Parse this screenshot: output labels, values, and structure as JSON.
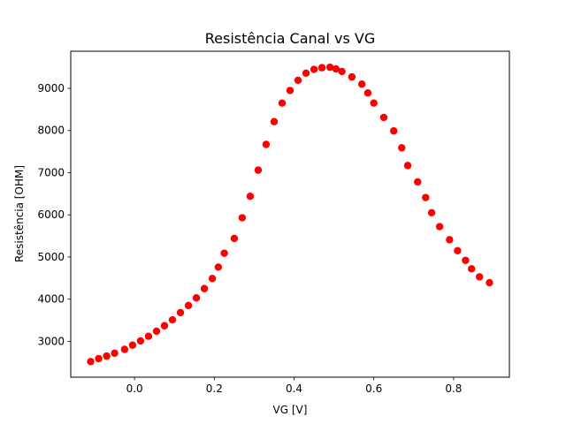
{
  "chart_data": {
    "type": "scatter",
    "title": "Resistência Canal vs VG",
    "xlabel": "VG [V]",
    "ylabel": "Resistência [OHM]",
    "xlim": [
      -0.16,
      0.94
    ],
    "ylim": [
      2150,
      9880
    ],
    "xticks": [
      0.0,
      0.2,
      0.4,
      0.6,
      0.8
    ],
    "xtick_labels": [
      "0.0",
      "0.2",
      "0.4",
      "0.6",
      "0.8"
    ],
    "yticks": [
      3000,
      4000,
      5000,
      6000,
      7000,
      8000,
      9000
    ],
    "ytick_labels": [
      "3000",
      "4000",
      "5000",
      "6000",
      "7000",
      "8000",
      "9000"
    ],
    "grid": false,
    "series": [
      {
        "color": "#ff0000",
        "marker": "circle",
        "x": [
          -0.11,
          -0.09,
          -0.07,
          -0.05,
          -0.025,
          -0.005,
          0.015,
          0.035,
          0.055,
          0.075,
          0.095,
          0.115,
          0.135,
          0.155,
          0.175,
          0.195,
          0.21,
          0.225,
          0.25,
          0.27,
          0.29,
          0.31,
          0.33,
          0.35,
          0.37,
          0.39,
          0.41,
          0.43,
          0.45,
          0.47,
          0.49,
          0.505,
          0.52,
          0.545,
          0.57,
          0.585,
          0.6,
          0.625,
          0.65,
          0.67,
          0.685,
          0.71,
          0.73,
          0.745,
          0.765,
          0.79,
          0.81,
          0.83,
          0.845,
          0.865,
          0.89
        ],
        "y": [
          2520,
          2590,
          2650,
          2720,
          2810,
          2910,
          3010,
          3120,
          3240,
          3370,
          3510,
          3680,
          3850,
          4030,
          4250,
          4490,
          4760,
          5090,
          5440,
          5930,
          6440,
          7060,
          7670,
          8210,
          8650,
          8950,
          9190,
          9360,
          9450,
          9490,
          9500,
          9460,
          9400,
          9270,
          9100,
          8890,
          8650,
          8310,
          7990,
          7590,
          7170,
          6780,
          6410,
          6050,
          5720,
          5410,
          5150,
          4920,
          4720,
          4530,
          4390
        ]
      }
    ]
  }
}
